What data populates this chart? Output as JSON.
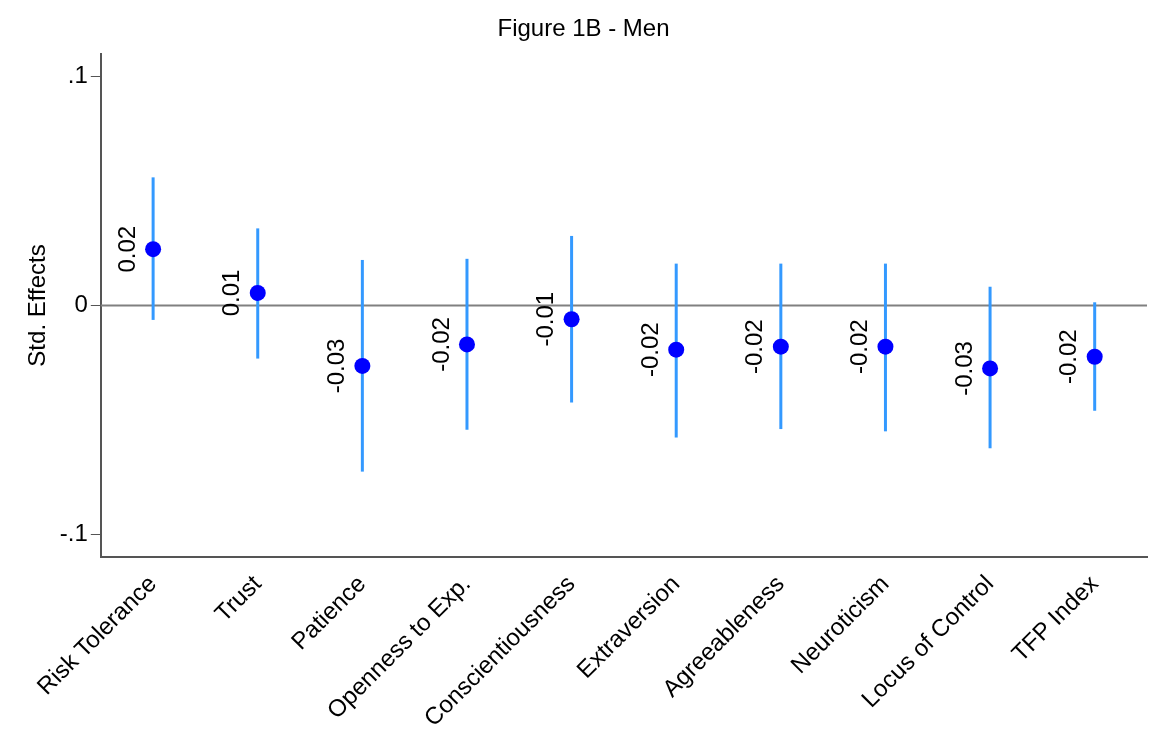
{
  "chart_data": {
    "type": "scatter",
    "title": "Figure 1B - Men",
    "ylabel": "Std. Effects",
    "categories": [
      "Risk Tolerance",
      "Trust",
      "Patience",
      "Openness to Exp.",
      "Conscientiousness",
      "Extraversion",
      "Agreeableness",
      "Neuroticism",
      "Locus of Control",
      "TFP Index"
    ],
    "series": [
      {
        "color": "#0000ff",
        "values": [
          0.0246,
          0.0055,
          -0.0264,
          -0.017,
          -0.006,
          -0.0193,
          -0.018,
          -0.018,
          -0.0275,
          -0.0224
        ],
        "errors": [
          [
            -0.0063,
            0.056
          ],
          [
            -0.0232,
            0.0337
          ],
          [
            -0.0726,
            0.0199
          ],
          [
            -0.0543,
            0.0204
          ],
          [
            -0.0424,
            0.0304
          ],
          [
            -0.0577,
            0.0183
          ],
          [
            -0.054,
            0.0183
          ],
          [
            -0.055,
            0.0183
          ],
          [
            -0.0624,
            0.0082
          ],
          [
            -0.046,
            0.0014
          ]
        ],
        "value_labels": [
          "0.02",
          "0.01",
          "-0.03",
          "-0.02",
          "-0.01",
          "-0.02",
          "-0.02",
          "-0.02",
          "-0.03",
          "-0.02"
        ]
      }
    ],
    "ylim": [
      -0.11,
      0.11
    ],
    "yticks": [
      {
        "value": -0.1,
        "label": "-.1"
      },
      0,
      {
        "value": 0.1,
        "label": ".1"
      }
    ],
    "ref_lines": [
      {
        "axis": "y",
        "value": 0,
        "color": "#808080"
      }
    ],
    "grid": false,
    "legend": false,
    "marker": "circle"
  }
}
